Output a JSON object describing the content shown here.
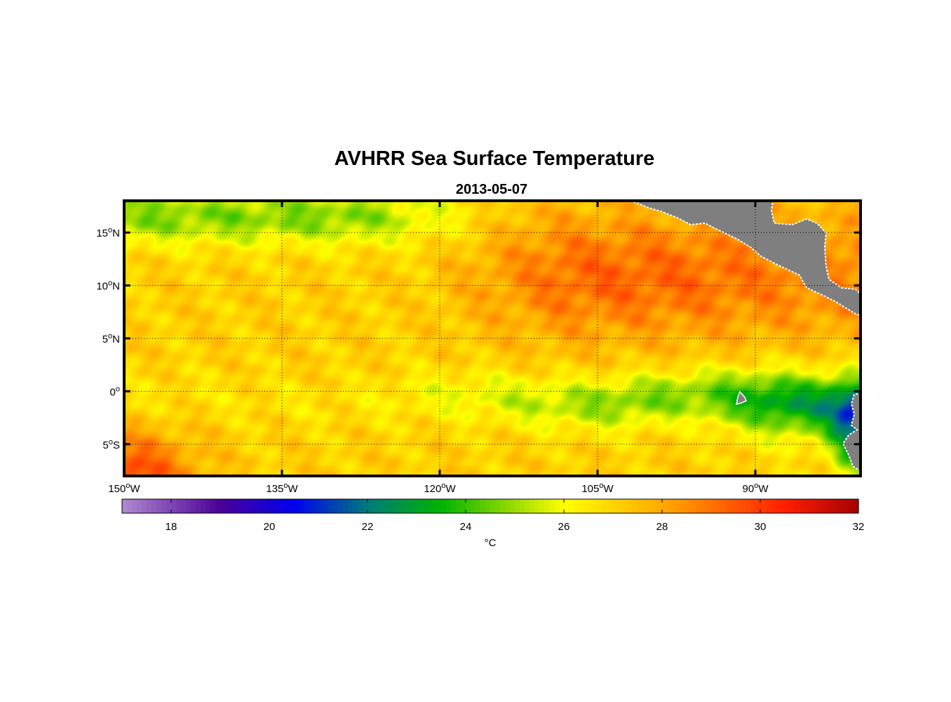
{
  "chart_data": {
    "type": "heatmap",
    "title": "AVHRR Sea Surface Temperature",
    "subtitle": "2013-05-07",
    "x_range_lon": [
      -150,
      -80
    ],
    "y_range_lat": [
      -8,
      18
    ],
    "x_ticks": [
      {
        "value": -150,
        "main": "150",
        "sup": "o",
        "tail": "W"
      },
      {
        "value": -135,
        "main": "135",
        "sup": "o",
        "tail": "W"
      },
      {
        "value": -120,
        "main": "120",
        "sup": "o",
        "tail": "W"
      },
      {
        "value": -105,
        "main": "105",
        "sup": "o",
        "tail": "W"
      },
      {
        "value": -90,
        "main": "90",
        "sup": "o",
        "tail": "W"
      }
    ],
    "y_ticks": [
      {
        "value": 15,
        "main": "15",
        "sup": "o",
        "tail": "N"
      },
      {
        "value": 10,
        "main": "10",
        "sup": "o",
        "tail": "N"
      },
      {
        "value": 5,
        "main": "5",
        "sup": "o",
        "tail": "N"
      },
      {
        "value": 0,
        "main": "0",
        "sup": "o",
        "tail": ""
      },
      {
        "value": -5,
        "main": "5",
        "sup": "o",
        "tail": "S"
      }
    ],
    "grid": true,
    "colorbar": {
      "min": 17,
      "max": 32,
      "ticks": [
        18,
        20,
        22,
        24,
        26,
        28,
        30,
        32
      ],
      "label": "°C",
      "stops": [
        [
          17,
          "#b08ad0"
        ],
        [
          19,
          "#4b0096"
        ],
        [
          20.5,
          "#0000f0"
        ],
        [
          22,
          "#007a7a"
        ],
        [
          23.5,
          "#00b400"
        ],
        [
          25,
          "#9bdc00"
        ],
        [
          26,
          "#ffff00"
        ],
        [
          28,
          "#ffaa00"
        ],
        [
          30.5,
          "#ff1e00"
        ],
        [
          32,
          "#a50000"
        ]
      ]
    },
    "features": {
      "cold_tongue_center_lat": -0.8,
      "warm_pool_center": [
        -102,
        10.5
      ],
      "peru_upwelling_min_c": 20.5,
      "land_color": "#7f7f7f"
    }
  }
}
